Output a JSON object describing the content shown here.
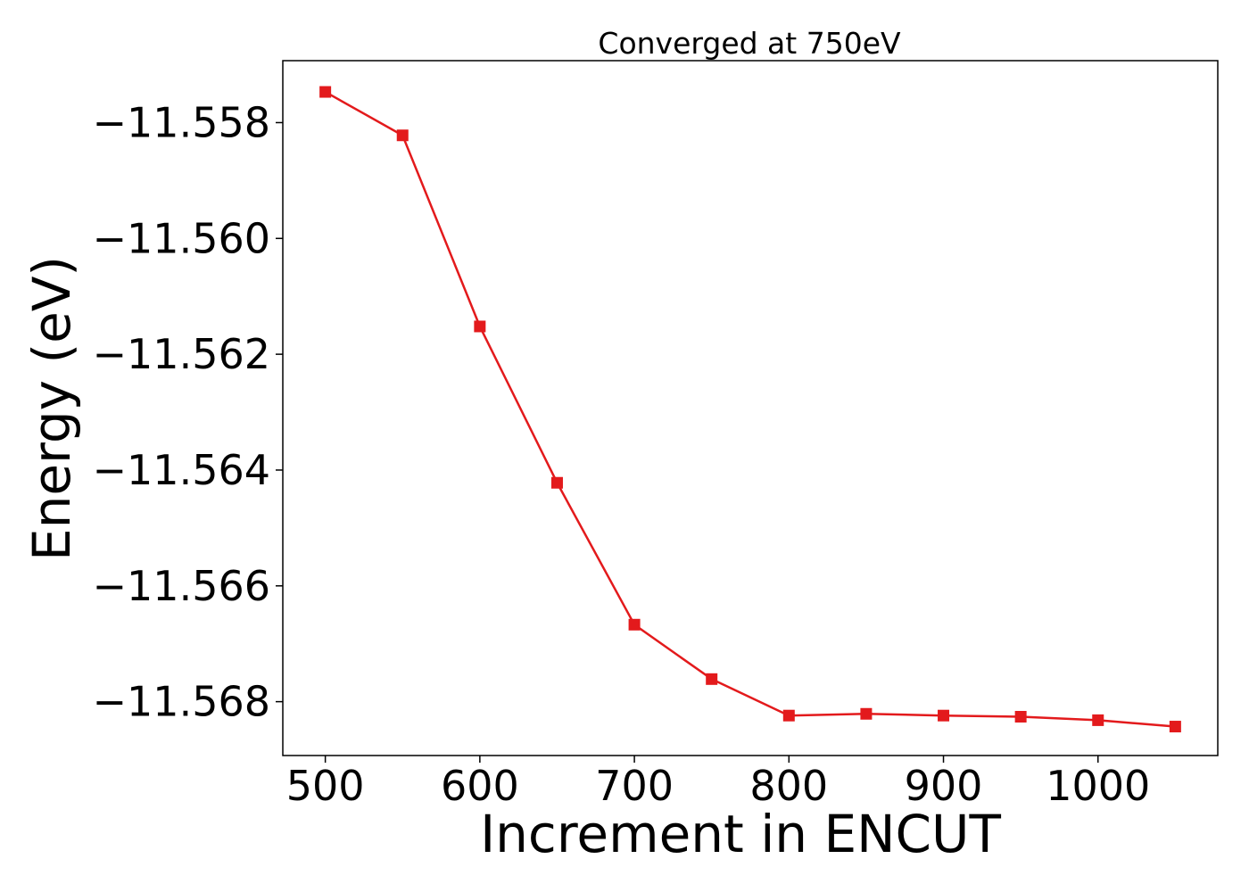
{
  "chart_data": {
    "type": "line",
    "title": "Converged at 750eV",
    "xlabel": "Increment in ENCUT",
    "ylabel": "Energy (eV)",
    "x": [
      500,
      550,
      600,
      650,
      700,
      750,
      800,
      850,
      900,
      950,
      1000,
      1050
    ],
    "series": [
      {
        "values": [
          -11.55747,
          -11.55822,
          -11.56152,
          -11.56422,
          -11.56667,
          -11.56761,
          -11.56824,
          -11.56821,
          -11.56824,
          -11.56826,
          -11.56832,
          -11.56843
        ],
        "color": "#e31a1c",
        "marker": "square"
      }
    ],
    "xlim": [
      472.5,
      1077.5
    ],
    "ylim": [
      -11.56893,
      -11.55693
    ],
    "xticks": [
      500,
      600,
      700,
      800,
      900,
      1000
    ],
    "xtick_labels": [
      "500",
      "600",
      "700",
      "800",
      "900",
      "1000"
    ],
    "yticks": [
      -11.558,
      -11.56,
      -11.562,
      -11.564,
      -11.566,
      -11.568
    ],
    "ytick_labels": [
      "−11.558",
      "−11.560",
      "−11.562",
      "−11.564",
      "−11.566",
      "−11.568"
    ],
    "grid": false,
    "legend": "none"
  }
}
